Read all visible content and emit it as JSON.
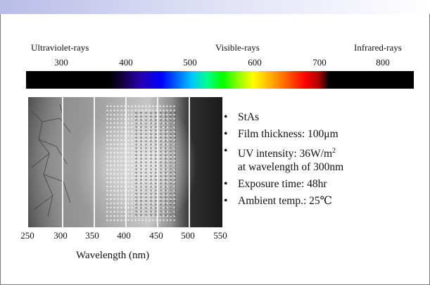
{
  "spectrum": {
    "regions": [
      "Ultraviolet-rays",
      "Visible-rays",
      "Infrared-rays"
    ],
    "ticks": [
      "300",
      "400",
      "500",
      "600",
      "700",
      "800"
    ]
  },
  "photo_axis": {
    "ticks": [
      "250",
      "300",
      "350",
      "400",
      "450",
      "500",
      "550"
    ],
    "label": "Wavelength (nm)"
  },
  "bullets": [
    {
      "text": "StAs"
    },
    {
      "text": "Film thickness: 100μm"
    },
    {
      "text": "UV intensity: 36W/m",
      "sup": "2",
      "line2": "at wavelength of 300nm"
    },
    {
      "text": "Exposure time: 48hr"
    },
    {
      "text": "Ambient temp.: 25℃"
    }
  ],
  "bullet_symbol": "•"
}
